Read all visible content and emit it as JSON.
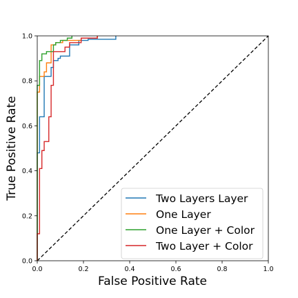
{
  "chart_data": {
    "type": "line",
    "title": "",
    "xlabel": "False Positive Rate",
    "ylabel": "True Positive Rate",
    "xlim": [
      0.0,
      1.0
    ],
    "ylim": [
      0.0,
      1.0
    ],
    "xticks": [
      "0.0",
      "0.2",
      "0.4",
      "0.6",
      "0.8",
      "1.0"
    ],
    "yticks": [
      "0.0",
      "0.2",
      "0.4",
      "0.6",
      "0.8",
      "1.0"
    ],
    "grid": false,
    "legend_position": "lower-right",
    "diagonal": {
      "x": [
        0,
        1
      ],
      "y": [
        0,
        1
      ],
      "style": "dashed",
      "color": "#000000"
    },
    "series": [
      {
        "name": "Two Layers Layer",
        "color": "#1f77b4",
        "x": [
          0.0,
          0.0,
          0.01,
          0.01,
          0.03,
          0.03,
          0.06,
          0.06,
          0.07,
          0.07,
          0.09,
          0.09,
          0.1,
          0.1,
          0.14,
          0.14,
          0.18,
          0.18,
          0.22,
          0.22,
          0.34,
          0.34
        ],
        "y": [
          0.0,
          0.48,
          0.48,
          0.64,
          0.64,
          0.82,
          0.82,
          0.86,
          0.86,
          0.89,
          0.89,
          0.9,
          0.9,
          0.91,
          0.91,
          0.96,
          0.96,
          0.98,
          0.98,
          0.985,
          0.985,
          1.0
        ]
      },
      {
        "name": "One Layer",
        "color": "#ff7f0e",
        "x": [
          0.0,
          0.0,
          0.01,
          0.01,
          0.03,
          0.03,
          0.04,
          0.04,
          0.06,
          0.06,
          0.08,
          0.08,
          0.11,
          0.11,
          0.19,
          0.19,
          0.26,
          0.26
        ],
        "y": [
          0.0,
          0.75,
          0.75,
          0.82,
          0.82,
          0.84,
          0.84,
          0.88,
          0.88,
          0.96,
          0.96,
          0.97,
          0.97,
          0.98,
          0.98,
          0.99,
          0.99,
          1.0
        ]
      },
      {
        "name": "One Layer + Color",
        "color": "#2ca02c",
        "x": [
          0.0,
          0.0,
          0.01,
          0.01,
          0.02,
          0.02,
          0.04,
          0.04,
          0.07,
          0.07,
          0.08,
          0.08,
          0.1,
          0.1,
          0.13,
          0.13,
          0.15,
          0.15
        ],
        "y": [
          0.0,
          0.78,
          0.78,
          0.89,
          0.89,
          0.92,
          0.92,
          0.93,
          0.93,
          0.96,
          0.96,
          0.97,
          0.97,
          0.98,
          0.98,
          0.99,
          0.99,
          1.0
        ]
      },
      {
        "name": "Two Layer + Color",
        "color": "#d62728",
        "x": [
          0.0,
          0.0,
          0.01,
          0.01,
          0.02,
          0.02,
          0.03,
          0.03,
          0.05,
          0.05,
          0.06,
          0.06,
          0.07,
          0.07,
          0.12,
          0.12,
          0.14,
          0.14,
          0.19,
          0.19,
          0.26,
          0.26
        ],
        "y": [
          0.0,
          0.12,
          0.12,
          0.41,
          0.41,
          0.49,
          0.49,
          0.53,
          0.53,
          0.64,
          0.64,
          0.78,
          0.78,
          0.93,
          0.93,
          0.95,
          0.95,
          0.97,
          0.97,
          0.99,
          0.99,
          1.0
        ]
      }
    ]
  }
}
